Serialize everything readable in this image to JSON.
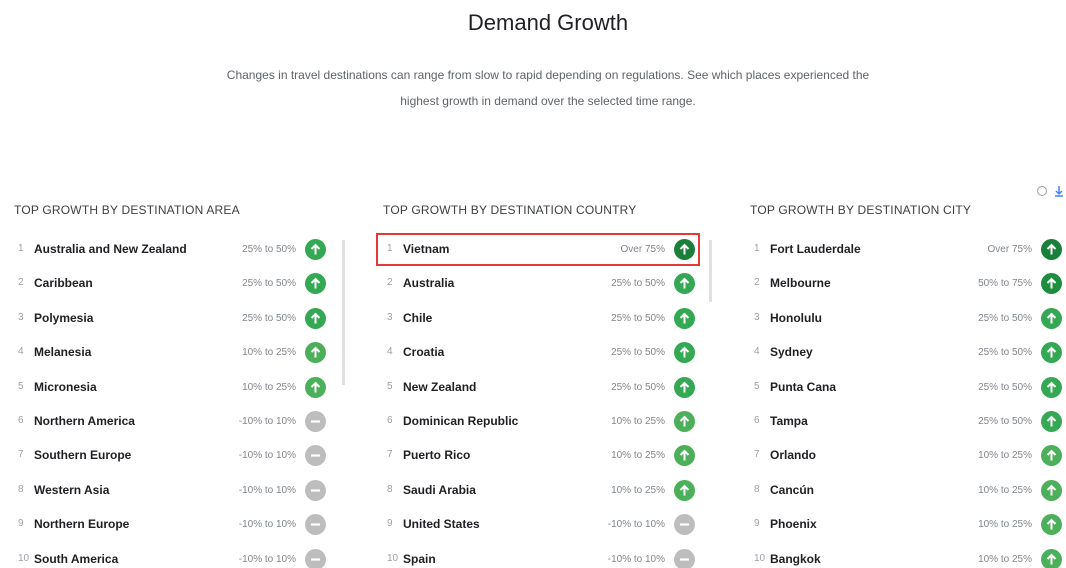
{
  "header": {
    "title": "Demand Growth",
    "subtitle_lines": [
      "Changes in travel destinations can range from slow to rapid depending on regulations. See which places experienced the",
      "highest growth in demand over the selected time range."
    ]
  },
  "panels": [
    {
      "title": "TOP GROWTH BY DESTINATION AREA",
      "rows": [
        {
          "rank": 1,
          "name": "Australia and New Zealand",
          "range": "25% to 50%",
          "trend": "up",
          "color": "#34a853"
        },
        {
          "rank": 2,
          "name": "Caribbean",
          "range": "25% to 50%",
          "trend": "up",
          "color": "#34a853"
        },
        {
          "rank": 3,
          "name": "Polymesia",
          "range": "25% to 50%",
          "trend": "up",
          "color": "#34a853"
        },
        {
          "rank": 4,
          "name": "Melanesia",
          "range": "10% to 25%",
          "trend": "up",
          "color": "#4cb05a"
        },
        {
          "rank": 5,
          "name": "Micronesia",
          "range": "10% to 25%",
          "trend": "up",
          "color": "#4cb05a"
        },
        {
          "rank": 6,
          "name": "Northern America",
          "range": "-10% to 10%",
          "trend": "flat",
          "color": "#bdbdbd"
        },
        {
          "rank": 7,
          "name": "Southern Europe",
          "range": "-10% to 10%",
          "trend": "flat",
          "color": "#bdbdbd"
        },
        {
          "rank": 8,
          "name": "Western Asia",
          "range": "-10% to 10%",
          "trend": "flat",
          "color": "#bdbdbd"
        },
        {
          "rank": 9,
          "name": "Northern Europe",
          "range": "-10% to 10%",
          "trend": "flat",
          "color": "#bdbdbd"
        },
        {
          "rank": 10,
          "name": "South America",
          "range": "-10% to 10%",
          "trend": "flat",
          "color": "#bdbdbd"
        }
      ]
    },
    {
      "title": "TOP GROWTH BY DESTINATION COUNTRY",
      "rows": [
        {
          "rank": 1,
          "name": "Vietnam",
          "range": "Over 75%",
          "trend": "up",
          "color": "#188038",
          "highlight": true
        },
        {
          "rank": 2,
          "name": "Australia",
          "range": "25% to 50%",
          "trend": "up",
          "color": "#34a853"
        },
        {
          "rank": 3,
          "name": "Chile",
          "range": "25% to 50%",
          "trend": "up",
          "color": "#34a853"
        },
        {
          "rank": 4,
          "name": "Croatia",
          "range": "25% to 50%",
          "trend": "up",
          "color": "#34a853"
        },
        {
          "rank": 5,
          "name": "New Zealand",
          "range": "25% to 50%",
          "trend": "up",
          "color": "#34a853"
        },
        {
          "rank": 6,
          "name": "Dominican Republic",
          "range": "10% to 25%",
          "trend": "up",
          "color": "#4cb05a"
        },
        {
          "rank": 7,
          "name": "Puerto Rico",
          "range": "10% to 25%",
          "trend": "up",
          "color": "#4cb05a"
        },
        {
          "rank": 8,
          "name": "Saudi Arabia",
          "range": "10% to 25%",
          "trend": "up",
          "color": "#4cb05a"
        },
        {
          "rank": 9,
          "name": "United States",
          "range": "-10% to 10%",
          "trend": "flat",
          "color": "#bdbdbd"
        },
        {
          "rank": 10,
          "name": "Spain",
          "range": "-10% to 10%",
          "trend": "flat",
          "color": "#bdbdbd"
        }
      ]
    },
    {
      "title": "TOP GROWTH BY DESTINATION CITY",
      "rows": [
        {
          "rank": 1,
          "name": "Fort Lauderdale",
          "range": "Over 75%",
          "trend": "up",
          "color": "#188038"
        },
        {
          "rank": 2,
          "name": "Melbourne",
          "range": "50% to 75%",
          "trend": "up",
          "color": "#1e8e3e"
        },
        {
          "rank": 3,
          "name": "Honolulu",
          "range": "25% to 50%",
          "trend": "up",
          "color": "#34a853"
        },
        {
          "rank": 4,
          "name": "Sydney",
          "range": "25% to 50%",
          "trend": "up",
          "color": "#34a853"
        },
        {
          "rank": 5,
          "name": "Punta Cana",
          "range": "25% to 50%",
          "trend": "up",
          "color": "#34a853"
        },
        {
          "rank": 6,
          "name": "Tampa",
          "range": "25% to 50%",
          "trend": "up",
          "color": "#34a853"
        },
        {
          "rank": 7,
          "name": "Orlando",
          "range": "10% to 25%",
          "trend": "up",
          "color": "#4cb05a"
        },
        {
          "rank": 8,
          "name": "Cancún",
          "range": "10% to 25%",
          "trend": "up",
          "color": "#4cb05a"
        },
        {
          "rank": 9,
          "name": "Phoenix",
          "range": "10% to 25%",
          "trend": "up",
          "color": "#4cb05a"
        },
        {
          "rank": 10,
          "name": "Bangkok",
          "range": "10% to 25%",
          "trend": "up",
          "color": "#4cb05a"
        }
      ]
    }
  ]
}
